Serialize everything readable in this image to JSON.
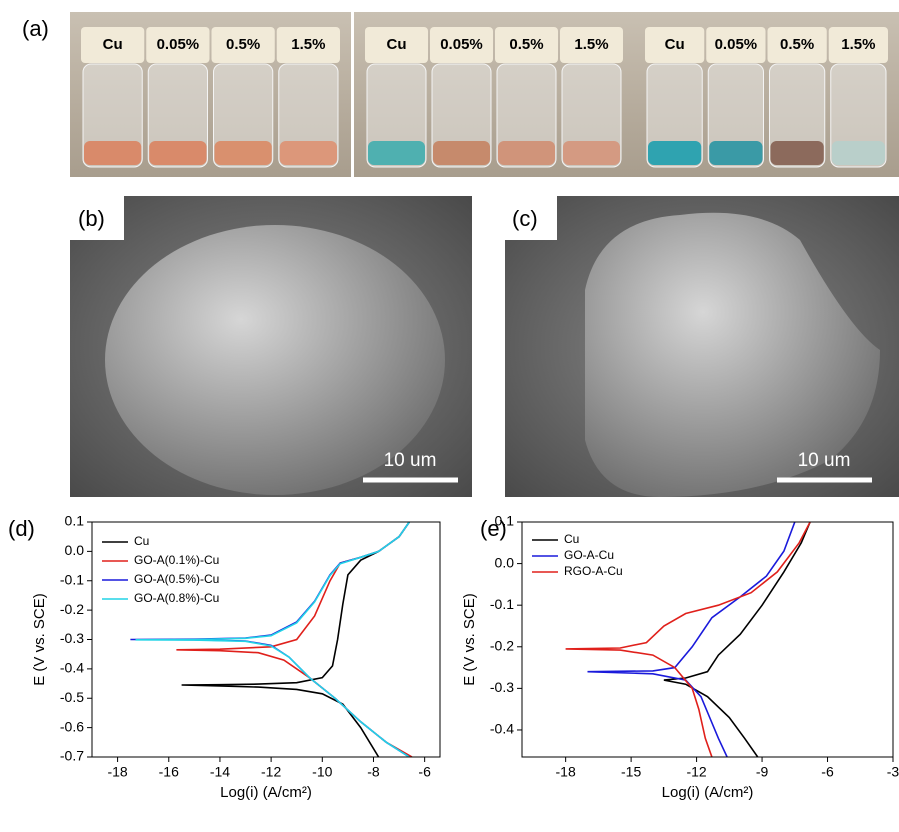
{
  "panel_labels": [
    "(a)",
    "(b)",
    "(c)",
    "(d)",
    "(e)"
  ],
  "photos": [
    {
      "vials": [
        "Cu",
        "0.05%",
        "0.5%",
        "1.5%"
      ]
    },
    {
      "vials": [
        "Cu",
        "0.05%",
        "0.5%",
        "1.5%"
      ]
    },
    {
      "vials": [
        "Cu",
        "0.05%",
        "0.5%",
        "1.5%"
      ]
    }
  ],
  "scale_bars": [
    "10 um",
    "10 um"
  ],
  "chart_data": [
    {
      "type": "line",
      "xlabel": "Log(i) (A/cm²)",
      "ylabel": "E (V vs. SCE)",
      "xlim": [
        -19,
        -5.4
      ],
      "ylim": [
        -0.7,
        0.1
      ],
      "xticks": [
        -18,
        -16,
        -14,
        -12,
        -10,
        -8,
        -6
      ],
      "yticks": [
        -0.7,
        -0.6,
        -0.5,
        -0.4,
        -0.3,
        -0.2,
        -0.1,
        {
          "value": 0,
          "label": "0.0"
        },
        0.1
      ],
      "legend": "top-left",
      "series": [
        {
          "name": "Cu",
          "color": "#000000",
          "x": [
            -7.8,
            -8.5,
            -9.2,
            -10,
            -11,
            -12.5,
            -14,
            -15.5,
            -14,
            -12.5,
            -11,
            -10,
            -9.6,
            -9.4,
            -9.2,
            -9,
            -8.5,
            -7.8,
            -7,
            -6.6
          ],
          "values": [
            -0.7,
            -0.6,
            -0.52,
            -0.485,
            -0.47,
            -0.462,
            -0.458,
            -0.455,
            -0.454,
            -0.452,
            -0.447,
            -0.43,
            -0.39,
            -0.3,
            -0.18,
            -0.08,
            -0.03,
            0,
            0.05,
            0.1
          ]
        },
        {
          "name": "GO-A(0.1%)-Cu",
          "color": "#e0201b",
          "x": [
            -6.5,
            -7.5,
            -8.5,
            -9.5,
            -10.5,
            -11.5,
            -12.5,
            -14,
            -15.7,
            -14,
            -12,
            -11,
            -10.3,
            -9.7,
            -9.3,
            -8.5,
            -7.8,
            -7,
            -6.6
          ],
          "values": [
            -0.7,
            -0.65,
            -0.58,
            -0.5,
            -0.43,
            -0.37,
            -0.345,
            -0.338,
            -0.335,
            -0.333,
            -0.325,
            -0.3,
            -0.22,
            -0.1,
            -0.04,
            -0.02,
            0,
            0.05,
            0.1
          ]
        },
        {
          "name": "GO-A(0.5%)-Cu",
          "color": "#1a1adb",
          "x": [
            -6.6,
            -7.5,
            -8.5,
            -9.5,
            -10.5,
            -11.3,
            -12,
            -13,
            -15,
            -17.5,
            -15,
            -13,
            -12,
            -11,
            -10.3,
            -9.7,
            -9.3,
            -8.5,
            -7.8,
            -7,
            -6.6
          ],
          "values": [
            -0.7,
            -0.65,
            -0.58,
            -0.5,
            -0.43,
            -0.36,
            -0.32,
            -0.305,
            -0.301,
            -0.3,
            -0.299,
            -0.295,
            -0.285,
            -0.24,
            -0.17,
            -0.08,
            -0.04,
            -0.02,
            0,
            0.05,
            0.1
          ]
        },
        {
          "name": "GO-A(0.8%)-Cu",
          "color": "#22d3e6",
          "x": [
            -6.6,
            -7.5,
            -8.5,
            -9.5,
            -10.5,
            -11.3,
            -12,
            -13,
            -15,
            -17.3,
            -15,
            -13,
            -12,
            -11,
            -10.3,
            -9.7,
            -9.3,
            -8.5,
            -7.8,
            -7,
            -6.6
          ],
          "values": [
            -0.7,
            -0.65,
            -0.58,
            -0.5,
            -0.43,
            -0.36,
            -0.322,
            -0.306,
            -0.302,
            -0.301,
            -0.3,
            -0.296,
            -0.287,
            -0.243,
            -0.172,
            -0.082,
            -0.042,
            -0.02,
            0,
            0.05,
            0.1
          ]
        }
      ]
    },
    {
      "type": "line",
      "xlabel": "Log(i) (A/cm²)",
      "ylabel": "E (V vs. SCE)",
      "xlim": [
        -20,
        -3
      ],
      "ylim": [
        -0.465,
        0.1
      ],
      "xticks": [
        -18,
        -15,
        -12,
        -9,
        -6,
        -3
      ],
      "yticks": [
        -0.4,
        -0.3,
        -0.2,
        -0.1,
        {
          "value": 0,
          "label": "0.0"
        },
        0.1
      ],
      "legend": "top-left",
      "series": [
        {
          "name": "Cu",
          "color": "#000000",
          "x": [
            -9.2,
            -9.8,
            -10.5,
            -11.5,
            -12.5,
            -13.5,
            -12.5,
            -11.5,
            -11,
            -10,
            -9,
            -8,
            -7.2,
            -6.8
          ],
          "values": [
            -0.465,
            -0.42,
            -0.37,
            -0.32,
            -0.29,
            -0.28,
            -0.275,
            -0.26,
            -0.22,
            -0.17,
            -0.1,
            -0.02,
            0.05,
            0.1
          ]
        },
        {
          "name": "GO-A-Cu",
          "color": "#1a1adb",
          "x": [
            -10.6,
            -11,
            -11.4,
            -11.8,
            -12.5,
            -14,
            -17,
            -14,
            -13,
            -12.2,
            -11.3,
            -10,
            -8.8,
            -8,
            -7.5
          ],
          "values": [
            -0.465,
            -0.42,
            -0.37,
            -0.32,
            -0.28,
            -0.265,
            -0.26,
            -0.258,
            -0.25,
            -0.2,
            -0.13,
            -0.08,
            -0.03,
            0.03,
            0.1
          ]
        },
        {
          "name": "RGO-A-Cu",
          "color": "#e0201b",
          "x": [
            -11.3,
            -11.6,
            -11.9,
            -12.2,
            -13,
            -14,
            -15.5,
            -18,
            -15.5,
            -14.3,
            -13.5,
            -12.5,
            -11,
            -9.5,
            -8.3,
            -7.3,
            -6.8
          ],
          "values": [
            -0.465,
            -0.42,
            -0.35,
            -0.3,
            -0.25,
            -0.22,
            -0.208,
            -0.205,
            -0.203,
            -0.19,
            -0.15,
            -0.12,
            -0.1,
            -0.07,
            -0.02,
            0.05,
            0.1
          ]
        }
      ]
    }
  ]
}
